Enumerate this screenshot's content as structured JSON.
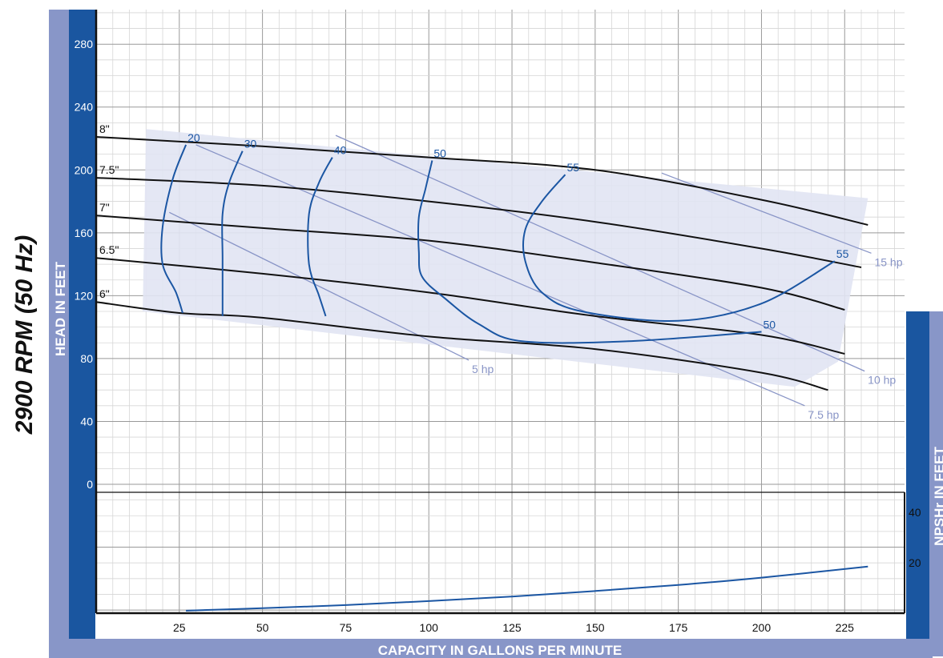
{
  "page": {
    "side_title": "2900 RPM (50 Hz)"
  },
  "chart_data": {
    "type": "line",
    "title": "2900 RPM (50 Hz)",
    "xlabel": "CAPACITY IN GALLONS PER MINUTE",
    "ylabel": "HEAD IN FEET",
    "y2label": "NPSHr IN FEET",
    "xlim": [
      0,
      243
    ],
    "ylim": [
      -82,
      302
    ],
    "y2lim": [
      0,
      48
    ],
    "x_ticks": [
      25,
      50,
      75,
      100,
      125,
      150,
      175,
      200,
      225
    ],
    "y_ticks": [
      0,
      40,
      80,
      120,
      160,
      200,
      240,
      280
    ],
    "y2_ticks": [
      20,
      40
    ],
    "grid": true,
    "colors": {
      "band": "#1a56a0",
      "band_light": "#8896c8",
      "region": "#e1e4f3",
      "impeller": "#111111",
      "efficiency": "#1b56a3",
      "horsepower": "#8894c6",
      "grid_major": "#999999",
      "grid_minor": "#d6d6d6"
    },
    "operating_region": [
      [
        15,
        226
      ],
      [
        232,
        182
      ],
      [
        223,
        78
      ],
      [
        210,
        62
      ],
      [
        14,
        110
      ]
    ],
    "impeller_curves": [
      {
        "label": "8\"",
        "points": [
          [
            0,
            221
          ],
          [
            50,
            215
          ],
          [
            100,
            208
          ],
          [
            150,
            200
          ],
          [
            200,
            181
          ],
          [
            232,
            165
          ]
        ]
      },
      {
        "label": "7.5\"",
        "points": [
          [
            0,
            195
          ],
          [
            50,
            190
          ],
          [
            100,
            180
          ],
          [
            150,
            167
          ],
          [
            200,
            150
          ],
          [
            230,
            138
          ]
        ]
      },
      {
        "label": "7\"",
        "points": [
          [
            0,
            171
          ],
          [
            50,
            163
          ],
          [
            100,
            155
          ],
          [
            150,
            141
          ],
          [
            200,
            125
          ],
          [
            225,
            111
          ]
        ]
      },
      {
        "label": "6.5\"",
        "points": [
          [
            0,
            144
          ],
          [
            50,
            134
          ],
          [
            100,
            122
          ],
          [
            150,
            107
          ],
          [
            200,
            95
          ],
          [
            225,
            83
          ]
        ]
      },
      {
        "label": "6\"",
        "points": [
          [
            0,
            116
          ],
          [
            25,
            109
          ],
          [
            50,
            106
          ],
          [
            100,
            94
          ],
          [
            150,
            86
          ],
          [
            200,
            71
          ],
          [
            220,
            60
          ]
        ]
      }
    ],
    "efficiency_curves": [
      {
        "label": "20",
        "points": [
          [
            27,
            216
          ],
          [
            23,
            194
          ],
          [
            20,
            164
          ],
          [
            20,
            140
          ],
          [
            24,
            122
          ],
          [
            26,
            109
          ]
        ]
      },
      {
        "label": "30",
        "points": [
          [
            44,
            212
          ],
          [
            40,
            192
          ],
          [
            38,
            172
          ],
          [
            38,
            144
          ],
          [
            38,
            115
          ],
          [
            38,
            107
          ]
        ]
      },
      {
        "label": "40",
        "points": [
          [
            71,
            208
          ],
          [
            67,
            192
          ],
          [
            64,
            172
          ],
          [
            64,
            140
          ],
          [
            67,
            120
          ],
          [
            69,
            107
          ]
        ]
      },
      {
        "label": "50",
        "points": [
          [
            101,
            206
          ],
          [
            99,
            188
          ],
          [
            97,
            170
          ],
          [
            97,
            148
          ],
          [
            98,
            132
          ],
          [
            105,
            118
          ],
          [
            115,
            102
          ],
          [
            128,
            91
          ],
          [
            160,
            91
          ],
          [
            200,
            97
          ]
        ]
      },
      {
        "label": "55",
        "points": [
          [
            141,
            197
          ],
          [
            134,
            180
          ],
          [
            129,
            162
          ],
          [
            129,
            142
          ],
          [
            134,
            122
          ],
          [
            146,
            110
          ],
          [
            175,
            104
          ],
          [
            200,
            115
          ],
          [
            222,
            142
          ]
        ]
      }
    ],
    "efficiency_labels_right": [
      "50",
      "55"
    ],
    "horsepower_curves": [
      {
        "label": "5 hp",
        "points": [
          [
            22,
            173
          ],
          [
            112,
            79
          ]
        ]
      },
      {
        "label": "7.5 hp",
        "points": [
          [
            30,
            216
          ],
          [
            213,
            50
          ]
        ]
      },
      {
        "label": "10 hp",
        "points": [
          [
            72,
            222
          ],
          [
            231,
            72
          ]
        ]
      },
      {
        "label": "15 hp",
        "points": [
          [
            170,
            198
          ],
          [
            233,
            147
          ]
        ]
      }
    ],
    "npshr_curve": {
      "label": "NPSHr",
      "points": [
        [
          27,
          1
        ],
        [
          50,
          2
        ],
        [
          75,
          3.2
        ],
        [
          100,
          4.8
        ],
        [
          125,
          6.6
        ],
        [
          150,
          8.8
        ],
        [
          175,
          11.2
        ],
        [
          200,
          14.1
        ],
        [
          232,
          18.5
        ]
      ]
    }
  }
}
